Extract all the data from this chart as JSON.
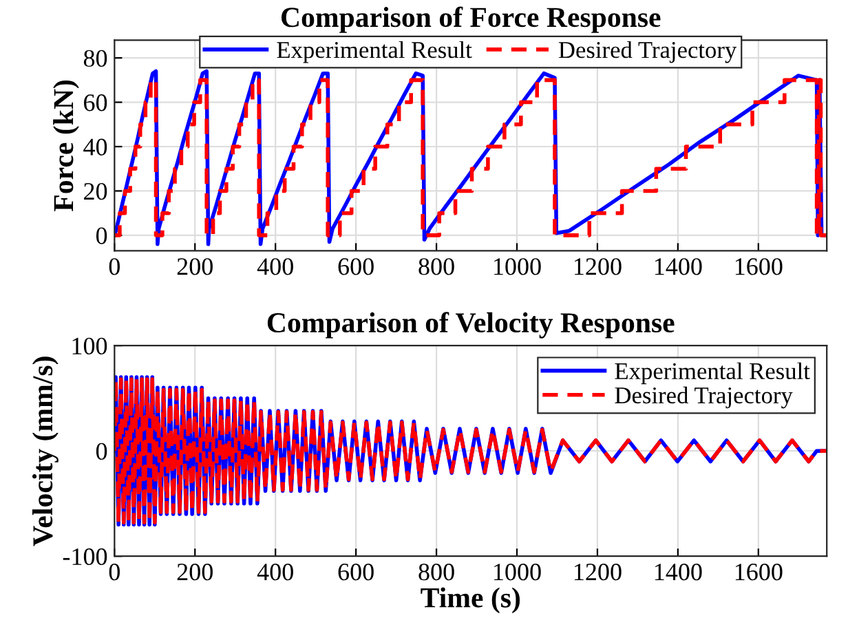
{
  "chart_data": [
    {
      "type": "line",
      "title": "Comparison of Force Response",
      "ylabel": "Force (kN)",
      "xlim": [
        0,
        1770
      ],
      "ylim": [
        -7,
        88
      ],
      "xticks": [
        0,
        200,
        400,
        600,
        800,
        1000,
        1200,
        1400,
        1600
      ],
      "yticks": [
        0,
        20,
        40,
        60,
        80
      ],
      "grid": true,
      "legend": "top",
      "series": [
        {
          "name": "Experimental Result",
          "color": "#0000ff",
          "line_style": "solid",
          "x": [
            0,
            5,
            18,
            31,
            44,
            57,
            69,
            82,
            95,
            103,
            107,
            110,
            125,
            141,
            157,
            172,
            188,
            204,
            219,
            229,
            233,
            235,
            252,
            268,
            284,
            300,
            317,
            333,
            349,
            359,
            363,
            368,
            390,
            411,
            433,
            454,
            475,
            497,
            518,
            530,
            534,
            542,
            572,
            601,
            631,
            660,
            690,
            719,
            749,
            766,
            770,
            783,
            823,
            864,
            904,
            945,
            986,
            1026,
            1067,
            1094,
            1098,
            1130,
            1214,
            1295,
            1378,
            1454,
            1539,
            1619,
            1699,
            1745,
            1748,
            1752,
            1757,
            1770
          ],
          "values": [
            0,
            3,
            13,
            23,
            33,
            43,
            53,
            63,
            73,
            74,
            -4,
            3,
            13,
            23,
            33,
            43,
            53,
            63,
            73,
            74,
            -4,
            3,
            13,
            23,
            33,
            43,
            53,
            63,
            73,
            73,
            -4,
            3,
            13,
            23,
            33,
            43,
            53,
            63,
            73,
            73,
            -3,
            3,
            13,
            23,
            33,
            43,
            53,
            63,
            73,
            72,
            -2,
            3,
            13,
            23,
            33,
            43,
            53,
            63,
            73,
            71,
            1,
            2,
            12,
            22,
            32,
            42,
            52,
            62,
            72,
            70,
            0,
            70,
            0,
            0
          ]
        },
        {
          "name": "Desired Trajectory",
          "color": "#ff0000",
          "line_style": "dashed",
          "x": [
            0,
            13,
            13,
            26,
            26,
            39,
            39,
            52,
            52,
            64,
            64,
            77,
            77,
            90,
            90,
            103,
            103,
            119,
            119,
            135,
            135,
            150,
            150,
            166,
            166,
            182,
            182,
            198,
            198,
            213,
            213,
            229,
            229,
            245,
            245,
            262,
            262,
            278,
            278,
            294,
            294,
            310,
            310,
            327,
            327,
            343,
            343,
            359,
            359,
            380,
            380,
            402,
            402,
            423,
            423,
            445,
            445,
            466,
            466,
            487,
            487,
            509,
            509,
            530,
            530,
            560,
            560,
            589,
            589,
            619,
            619,
            648,
            648,
            678,
            678,
            707,
            707,
            737,
            737,
            766,
            766,
            807,
            807,
            847,
            847,
            888,
            888,
            928,
            928,
            969,
            969,
            1010,
            1010,
            1050,
            1050,
            1094,
            1094,
            1180,
            1180,
            1261,
            1261,
            1346,
            1346,
            1420,
            1420,
            1505,
            1505,
            1585,
            1585,
            1665,
            1665,
            1745,
            1745,
            1750,
            1750,
            1755,
            1755,
            1770
          ],
          "values": [
            0,
            0,
            10,
            10,
            20,
            20,
            30,
            30,
            40,
            40,
            50,
            50,
            60,
            60,
            70,
            70,
            0,
            0,
            10,
            10,
            20,
            20,
            30,
            30,
            40,
            40,
            50,
            50,
            60,
            60,
            70,
            70,
            0,
            0,
            10,
            10,
            20,
            20,
            30,
            30,
            40,
            40,
            50,
            50,
            60,
            60,
            70,
            70,
            0,
            0,
            10,
            10,
            20,
            20,
            30,
            30,
            40,
            40,
            50,
            50,
            60,
            60,
            70,
            70,
            0,
            0,
            10,
            10,
            20,
            20,
            30,
            30,
            40,
            40,
            50,
            50,
            60,
            60,
            70,
            70,
            0,
            0,
            10,
            10,
            20,
            20,
            30,
            30,
            40,
            40,
            50,
            50,
            60,
            60,
            70,
            70,
            0,
            0,
            10,
            10,
            20,
            20,
            30,
            30,
            40,
            40,
            50,
            50,
            60,
            60,
            70,
            70,
            0,
            0,
            70,
            70,
            0,
            0
          ]
        }
      ]
    },
    {
      "type": "line",
      "title": "Comparison of Velocity Response",
      "xlabel": "Time (s)",
      "ylabel": "Velocity (mm/s)",
      "xlim": [
        0,
        1770
      ],
      "ylim": [
        -100,
        100
      ],
      "xticks": [
        0,
        200,
        400,
        600,
        800,
        1000,
        1200,
        1400,
        1600
      ],
      "yticks": [
        -100,
        0,
        100
      ],
      "grid": true,
      "legend": "top right",
      "x": [
        0,
        3,
        10,
        16,
        23,
        29,
        35,
        42,
        48,
        55,
        61,
        68,
        74,
        81,
        87,
        94,
        100,
        107,
        115,
        122,
        130,
        138,
        146,
        154,
        162,
        170,
        178,
        185,
        193,
        201,
        209,
        217,
        225,
        233,
        241,
        249,
        257,
        265,
        273,
        282,
        290,
        298,
        306,
        314,
        322,
        330,
        338,
        347,
        355,
        364,
        375,
        386,
        396,
        407,
        418,
        428,
        439,
        450,
        461,
        471,
        482,
        493,
        503,
        514,
        525,
        537,
        552,
        567,
        582,
        596,
        611,
        626,
        641,
        655,
        670,
        685,
        700,
        714,
        729,
        744,
        759,
        776,
        797,
        817,
        838,
        858,
        879,
        899,
        920,
        940,
        961,
        981,
        1002,
        1022,
        1043,
        1063,
        1084,
        1114,
        1155,
        1196,
        1236,
        1277,
        1318,
        1358,
        1399,
        1440,
        1481,
        1521,
        1562,
        1603,
        1643,
        1684,
        1725,
        1745,
        1770
      ],
      "series": [
        {
          "name": "Experimental Result",
          "color": "#0000ff",
          "line_style": "solid",
          "values": [
            0,
            70,
            -70,
            70,
            -70,
            70,
            -70,
            70,
            -70,
            70,
            -70,
            70,
            -70,
            70,
            -70,
            70,
            -70,
            60,
            -60,
            60,
            -60,
            60,
            -60,
            60,
            -60,
            60,
            -60,
            60,
            -60,
            60,
            -60,
            60,
            -60,
            50,
            -50,
            50,
            -50,
            50,
            -50,
            50,
            -50,
            50,
            -50,
            50,
            -50,
            50,
            -50,
            50,
            -50,
            38,
            -38,
            38,
            -38,
            38,
            -38,
            38,
            -38,
            38,
            -38,
            38,
            -38,
            38,
            -38,
            38,
            -38,
            28,
            -28,
            28,
            -28,
            28,
            -28,
            28,
            -28,
            28,
            -28,
            28,
            -28,
            28,
            -28,
            28,
            -28,
            21,
            -21,
            21,
            -21,
            21,
            -21,
            21,
            -21,
            21,
            -21,
            21,
            -21,
            21,
            -21,
            21,
            -21,
            10,
            -10,
            10,
            -10,
            10,
            -10,
            10,
            -10,
            10,
            -10,
            10,
            -10,
            10,
            -10,
            10,
            -10,
            0,
            0
          ]
        },
        {
          "name": "Desired Trajectory",
          "color": "#ff0000",
          "line_style": "dashed",
          "values": [
            0,
            68,
            -68,
            68,
            -68,
            68,
            -68,
            68,
            -68,
            68,
            -68,
            68,
            -68,
            68,
            -68,
            68,
            -68,
            58,
            -58,
            58,
            -58,
            58,
            -58,
            58,
            -58,
            58,
            -58,
            58,
            -58,
            58,
            -58,
            58,
            -58,
            48,
            -48,
            48,
            -48,
            48,
            -48,
            48,
            -48,
            48,
            -48,
            48,
            -48,
            48,
            -48,
            48,
            -48,
            37,
            -37,
            37,
            -37,
            37,
            -37,
            37,
            -37,
            37,
            -37,
            37,
            -37,
            37,
            -37,
            37,
            -37,
            27,
            -27,
            27,
            -27,
            27,
            -27,
            27,
            -27,
            27,
            -27,
            27,
            -27,
            27,
            -27,
            27,
            -27,
            20,
            -20,
            20,
            -20,
            20,
            -20,
            20,
            -20,
            20,
            -20,
            20,
            -20,
            20,
            -20,
            20,
            -20,
            10,
            -10,
            10,
            -10,
            10,
            -10,
            10,
            -10,
            10,
            -10,
            10,
            -10,
            10,
            -10,
            10,
            -10,
            0,
            0
          ]
        }
      ]
    }
  ]
}
